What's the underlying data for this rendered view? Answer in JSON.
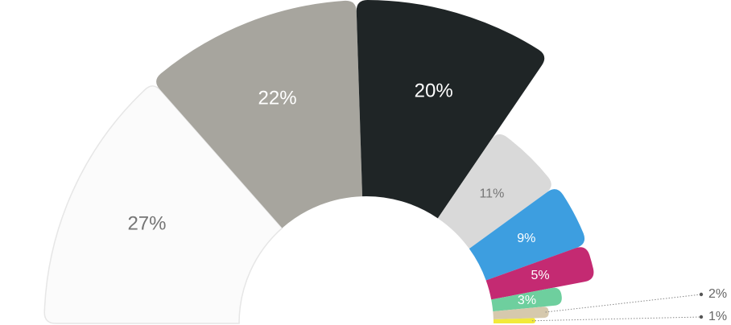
{
  "chart_data": {
    "type": "pie",
    "variant": "half-donut, variable-radius slices",
    "slices": [
      {
        "label": "27%",
        "value": 27,
        "color": "#fbfbfb",
        "text_color": "#757575"
      },
      {
        "label": "22%",
        "value": 22,
        "color": "#a7a59e",
        "text_color": "#ffffff"
      },
      {
        "label": "20%",
        "value": 20,
        "color": "#1f2526",
        "text_color": "#ffffff"
      },
      {
        "label": "11%",
        "value": 11,
        "color": "#d9d9d9",
        "text_color": "#757575"
      },
      {
        "label": "9%",
        "value": 9,
        "color": "#3d9ee0",
        "text_color": "#ffffff"
      },
      {
        "label": "5%",
        "value": 5,
        "color": "#c42a72",
        "text_color": "#ffffff"
      },
      {
        "label": "3%",
        "value": 3,
        "color": "#6ecf9e",
        "text_color": "#ffffff"
      },
      {
        "label": "2%",
        "value": 2,
        "color": "#d6c9ad",
        "text_color": "#666666",
        "label_outside": true
      },
      {
        "label": "1%",
        "value": 1,
        "color": "#f2ea3a",
        "text_color": "#666666",
        "label_outside": true
      }
    ]
  }
}
